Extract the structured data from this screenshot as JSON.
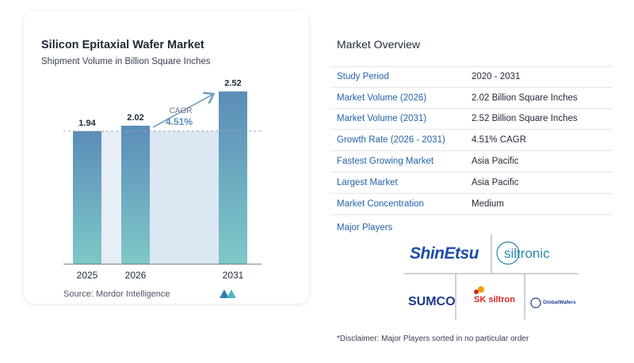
{
  "chart_data": {
    "type": "bar",
    "title": "Silicon Epitaxial Wafer Market",
    "subtitle": "Shipment Volume in Billion Square Inches",
    "categories": [
      "2025",
      "2026",
      "2031"
    ],
    "values": [
      1.94,
      2.02,
      2.52
    ],
    "value_labels": [
      "1.94",
      "2.02",
      "2.52"
    ],
    "annotation": {
      "label": "CAGR",
      "value": "4.51%"
    },
    "ylim": [
      0,
      2.7
    ]
  },
  "source": "Source:  Mordor Intelligence",
  "overview": {
    "title": "Market Overview",
    "rows": [
      {
        "label": "Study Period",
        "value": "2020 - 2031"
      },
      {
        "label": "Market Volume (2026)",
        "value": "2.02 Billion Square Inches"
      },
      {
        "label": "Market Volume (2031)",
        "value": "2.52 Billion Square Inches"
      },
      {
        "label": "Growth Rate (2026 - 2031)",
        "value": "4.51% CAGR"
      },
      {
        "label": "Fastest Growing Market",
        "value": "Asia Pacific"
      },
      {
        "label": "Largest Market",
        "value": "Asia Pacific"
      },
      {
        "label": "Market Concentration",
        "value": "Medium"
      }
    ]
  },
  "players": {
    "title": "Major Players",
    "logos": [
      "ShinEtsu",
      "siltronic",
      "SUMCO",
      "SK siltron",
      "GlobalWafers"
    ]
  },
  "disclaimer": "*Disclaimer: Major Players sorted in no particular order",
  "colors": {
    "bar_top": "#5b8db8",
    "bar_bottom": "#7ec8c8",
    "accent": "#2563a8"
  }
}
